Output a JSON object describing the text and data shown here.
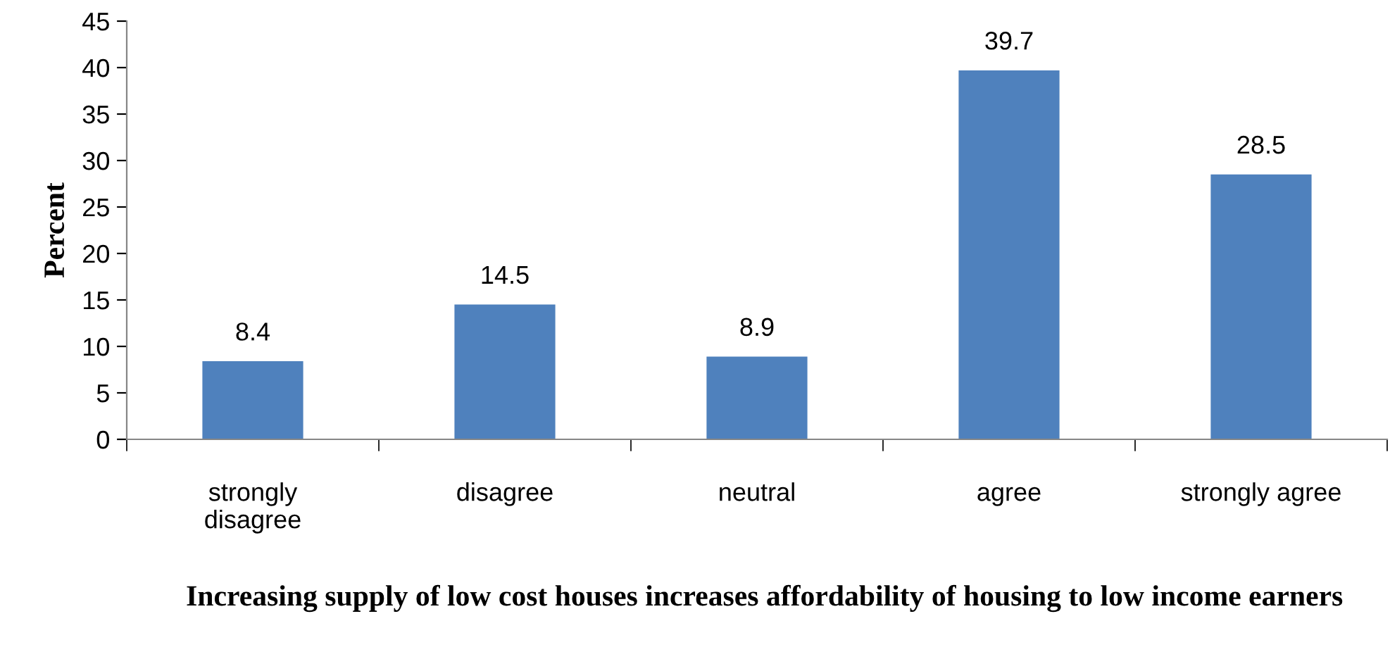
{
  "chart_data": {
    "type": "bar",
    "xlabel": "Increasing supply of low cost houses increases affordability of housing to low income earners",
    "ylabel": "Percent",
    "categories": [
      "strongly disagree",
      "disagree",
      "neutral",
      "agree",
      "strongly agree"
    ],
    "values": [
      8.4,
      14.5,
      8.9,
      39.7,
      28.5
    ],
    "color": "#4f81bd",
    "ylim": [
      0,
      45
    ],
    "yticks": [
      0,
      5,
      10,
      15,
      20,
      25,
      30,
      35,
      40,
      45
    ],
    "grid": false,
    "data_labels": true
  }
}
